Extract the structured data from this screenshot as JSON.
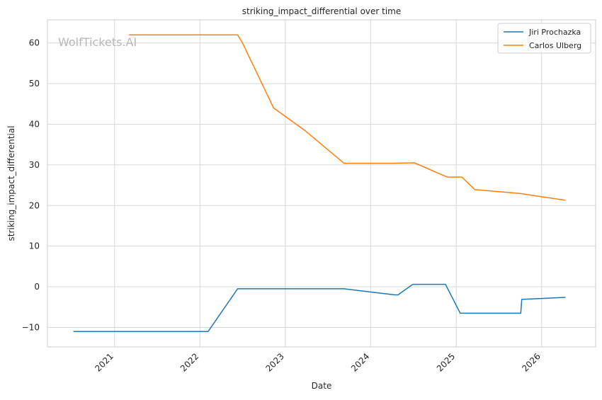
{
  "watermark": "WolfTickets.AI",
  "chart_data": {
    "type": "line",
    "title": "striking_impact_differential over time",
    "xlabel": "Date",
    "ylabel": "striking_impact_differential",
    "x_axis_type": "date",
    "xlim": [
      "2020-03-20",
      "2026-08-20"
    ],
    "ylim": [
      -14.8,
      65.7
    ],
    "x_ticks": [
      {
        "label": "2021",
        "date": "2021-01-01"
      },
      {
        "label": "2022",
        "date": "2022-01-01"
      },
      {
        "label": "2023",
        "date": "2023-01-01"
      },
      {
        "label": "2024",
        "date": "2024-01-01"
      },
      {
        "label": "2025",
        "date": "2025-01-01"
      },
      {
        "label": "2026",
        "date": "2026-01-01"
      }
    ],
    "y_ticks": [
      -10,
      0,
      10,
      20,
      30,
      40,
      50,
      60
    ],
    "grid": true,
    "legend_position": "top-right",
    "series": [
      {
        "name": "Jiri Prochazka",
        "color": "#1f77b4",
        "points": [
          {
            "x": "2020-07-11",
            "y": -11.0
          },
          {
            "x": "2022-02-05",
            "y": -11.0
          },
          {
            "x": "2022-06-11",
            "y": -0.5
          },
          {
            "x": "2023-09-09",
            "y": -0.5
          },
          {
            "x": "2024-04-13",
            "y": -2.0
          },
          {
            "x": "2024-04-27",
            "y": -2.0
          },
          {
            "x": "2024-06-29",
            "y": 0.6
          },
          {
            "x": "2024-11-16",
            "y": 0.6
          },
          {
            "x": "2025-01-18",
            "y": -6.5
          },
          {
            "x": "2025-10-04",
            "y": -6.5
          },
          {
            "x": "2025-10-08",
            "y": -3.1
          },
          {
            "x": "2026-04-11",
            "y": -2.6
          }
        ]
      },
      {
        "name": "Carlos Ulberg",
        "color": "#ff7f0e",
        "points": [
          {
            "x": "2021-03-06",
            "y": 62.0
          },
          {
            "x": "2022-06-11",
            "y": 62.0
          },
          {
            "x": "2022-07-02",
            "y": 60.0
          },
          {
            "x": "2022-11-12",
            "y": 44.0
          },
          {
            "x": "2023-03-25",
            "y": 38.5
          },
          {
            "x": "2023-09-09",
            "y": 30.4
          },
          {
            "x": "2024-03-30",
            "y": 30.4
          },
          {
            "x": "2024-07-06",
            "y": 30.5
          },
          {
            "x": "2024-11-23",
            "y": 27.0
          },
          {
            "x": "2025-01-25",
            "y": 27.0
          },
          {
            "x": "2025-03-22",
            "y": 23.9
          },
          {
            "x": "2025-09-27",
            "y": 23.0
          },
          {
            "x": "2026-04-11",
            "y": 21.3
          }
        ]
      }
    ]
  }
}
